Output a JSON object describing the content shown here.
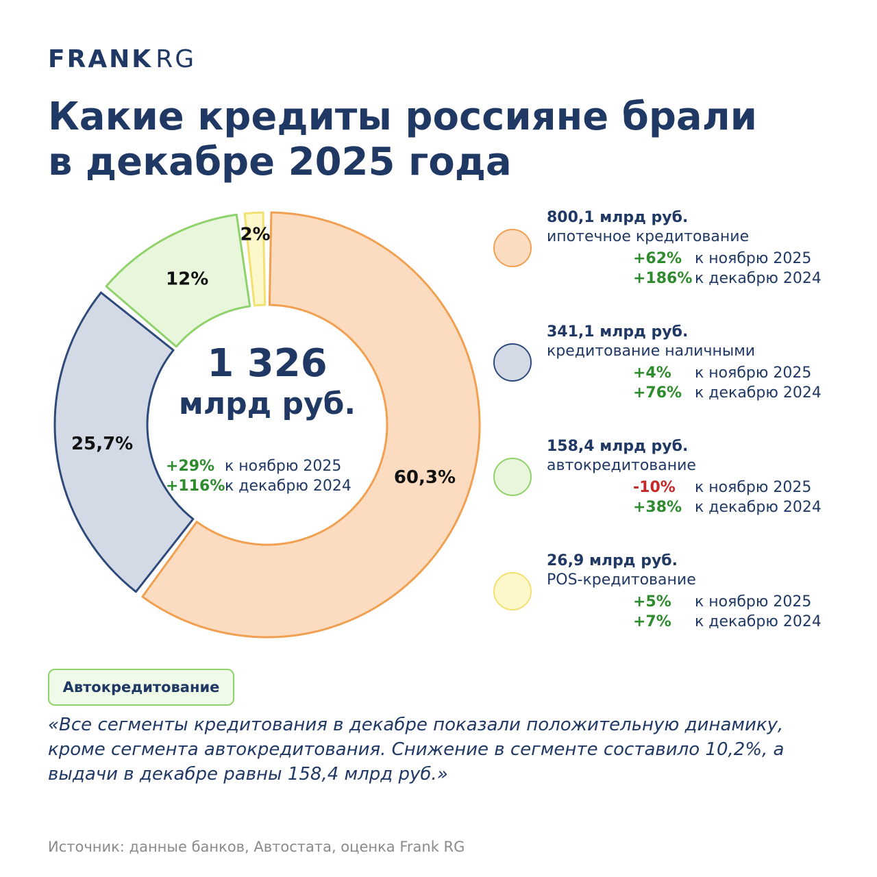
{
  "brand": {
    "name": "FRANK",
    "suffix": "RG"
  },
  "title_lines": [
    "Какие кредиты россияне брали",
    "в декабре 2025 года"
  ],
  "chart_data": {
    "type": "pie",
    "donut": true,
    "title": "Какие кредиты россияне брали в декабре 2025 года",
    "center": {
      "total": "1 326",
      "unit": "млрд руб.",
      "changes": [
        {
          "value": "+29%",
          "label": "к ноябрю 2025"
        },
        {
          "value": "+116%",
          "label": "к декабрю 2024"
        }
      ]
    },
    "series": [
      {
        "name": "ипотечное кредитование",
        "share": 60.3,
        "share_label": "60,3%",
        "amount": "800,1 млрд руб.",
        "amount_value": 800.1,
        "fill": "#fcdcc0",
        "stroke": "#f0a050",
        "changes": [
          {
            "value": "+62%",
            "label": "к ноябрю 2025",
            "negative": false
          },
          {
            "value": "+186%",
            "label": "к декабрю 2024",
            "negative": false
          }
        ]
      },
      {
        "name": "кредитование наличными",
        "share": 25.7,
        "share_label": "25,7%",
        "amount": "341,1 млрд руб.",
        "amount_value": 341.1,
        "fill": "#d3dae6",
        "stroke": "#2d4a7a",
        "changes": [
          {
            "value": "+4%",
            "label": "к ноябрю 2025",
            "negative": false
          },
          {
            "value": "+76%",
            "label": "к декабрю 2024",
            "negative": false
          }
        ]
      },
      {
        "name": "автокредитование",
        "share": 12,
        "share_label": "12%",
        "amount": "158,4 млрд руб.",
        "amount_value": 158.4,
        "fill": "#e8f7dc",
        "stroke": "#8fd16a",
        "changes": [
          {
            "value": "-10%",
            "label": "к ноябрю 2025",
            "negative": true
          },
          {
            "value": "+38%",
            "label": "к декабрю 2024",
            "negative": false
          }
        ]
      },
      {
        "name": "POS-кредитование",
        "share": 2,
        "share_label": "2%",
        "amount": "26,9 млрд руб.",
        "amount_value": 26.9,
        "fill": "#fdf7cc",
        "stroke": "#f2e070",
        "changes": [
          {
            "value": "+5%",
            "label": "к ноябрю 2025",
            "negative": false
          },
          {
            "value": "+7%",
            "label": "к декабрю 2024",
            "negative": false
          }
        ]
      }
    ]
  },
  "badge": {
    "label": "Автокредитование"
  },
  "quote": "«Все сегменты кредитования в декабре показали положительную динамику, кроме сегмента автокредитования. Снижение в сегменте составило 10,2%, а выдачи в декабре равны 158,4 млрд руб.»",
  "source": "Источник: данные банков, Автостата, оценка Frank RG"
}
